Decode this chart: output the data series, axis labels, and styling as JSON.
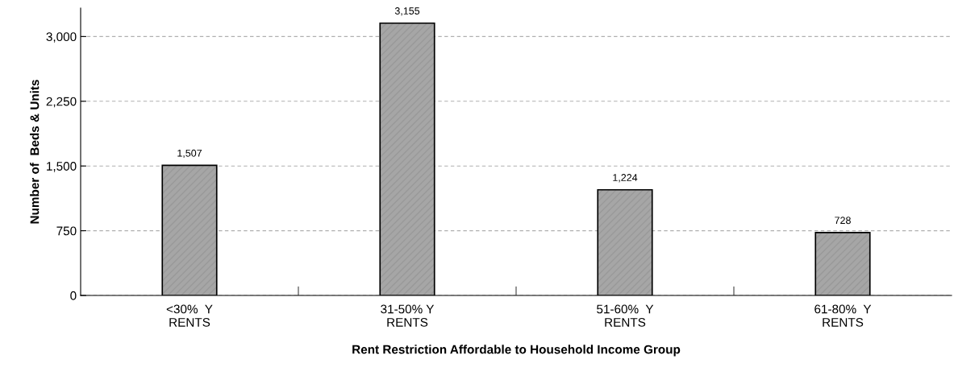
{
  "chart_data": {
    "type": "bar",
    "xlabel": "Rent Restriction Affordable to Household Income Group",
    "ylabel": "Number of  Beds & Units",
    "categories": [
      "<30%  Y\nRENTS",
      "31-50% Y\nRENTS",
      "51-60%  Y\nRENTS",
      "61-80%  Y\nRENTS"
    ],
    "values": [
      1507,
      3155,
      1224,
      728
    ],
    "value_labels": [
      "1,507",
      "3,155",
      "1,224",
      "728"
    ],
    "color": "#a6a6a6",
    "ylim": [
      0,
      3330
    ],
    "yticks": [
      0,
      750,
      {
        "value": 1500,
        "label": "1,500"
      },
      {
        "value": 2250,
        "label": "2,250"
      },
      {
        "value": 3000,
        "label": "3,000"
      }
    ],
    "grid": "y"
  }
}
